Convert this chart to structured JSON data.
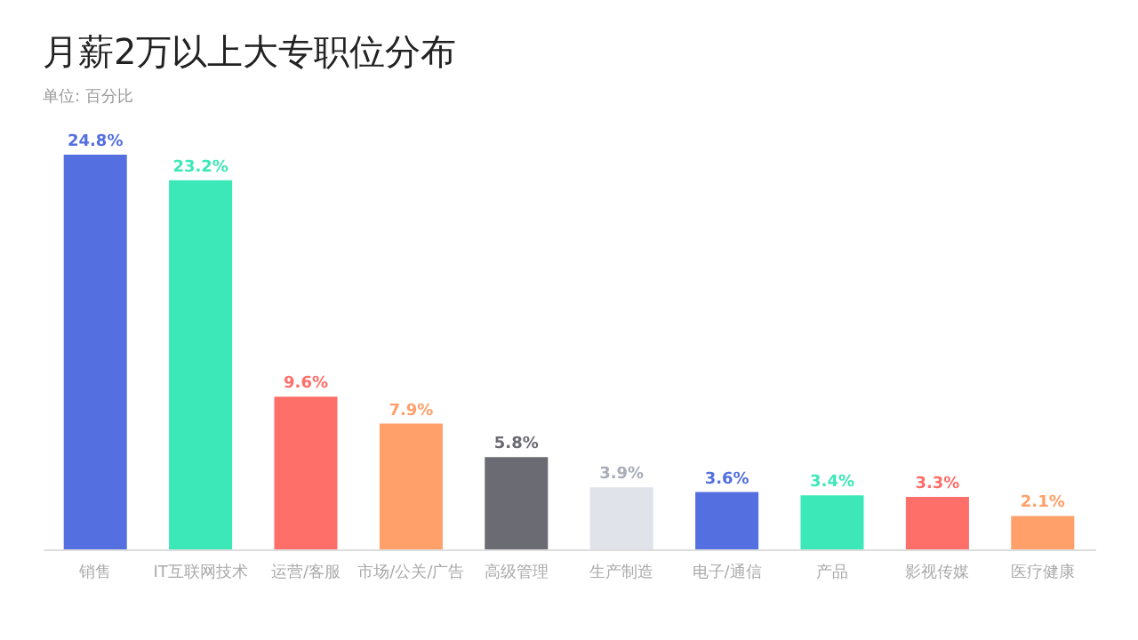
{
  "chart_data": {
    "type": "bar",
    "title": "月薪2万以上大专职位分布",
    "subtitle": "单位: 百分比",
    "categories": [
      "销售",
      "IT互联网技术",
      "运营/客服",
      "市场/公关/广告",
      "高级管理",
      "生产制造",
      "电子/通信",
      "产品",
      "影视传媒",
      "医疗健康"
    ],
    "values": [
      24.8,
      23.2,
      9.6,
      7.9,
      5.8,
      3.9,
      3.6,
      3.4,
      3.3,
      2.1
    ],
    "colors": [
      "#5470e0",
      "#3de8b8",
      "#ff6f6a",
      "#ffa06a",
      "#6b6b73",
      "#e0e3ea",
      "#5470e0",
      "#3de8b8",
      "#ff6f6a",
      "#ffa06a"
    ],
    "value_labels": [
      "24.8%",
      "23.2%",
      "9.6%",
      "7.9%",
      "5.8%",
      "3.9%",
      "3.6%",
      "3.4%",
      "3.3%",
      "2.1%"
    ]
  }
}
